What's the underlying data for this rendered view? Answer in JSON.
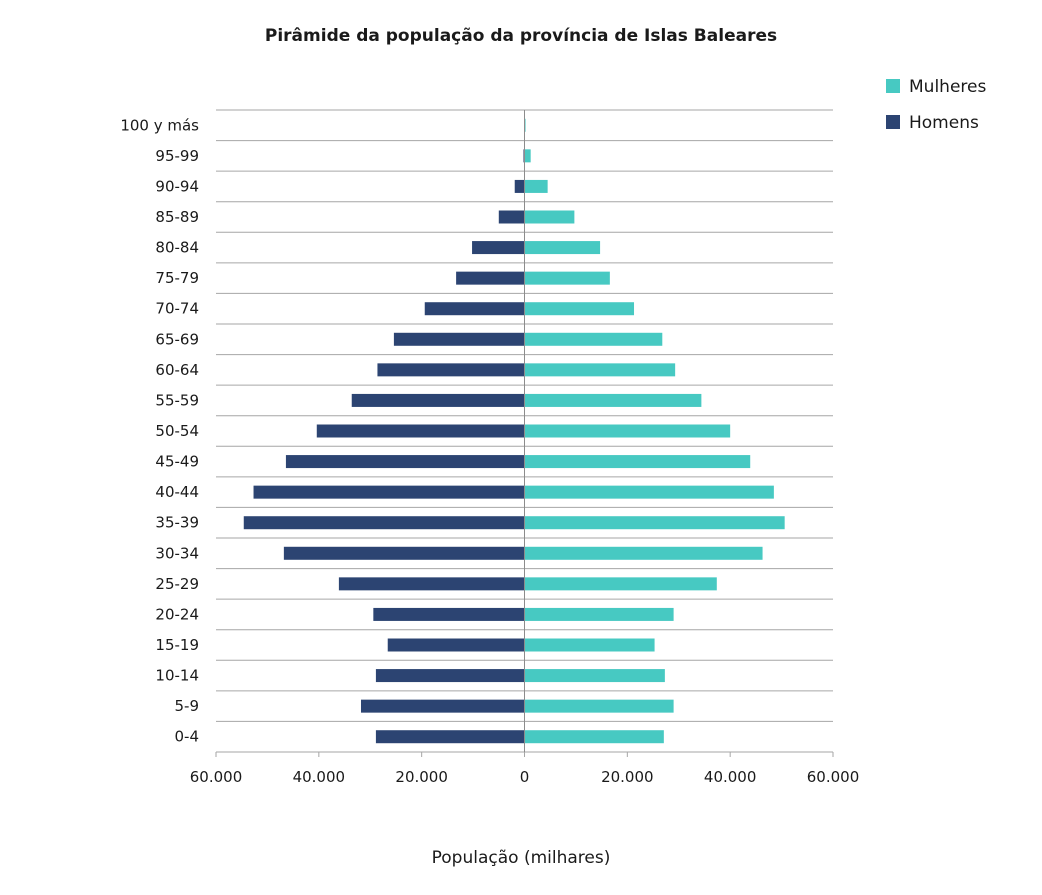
{
  "chart_data": {
    "type": "bar",
    "orientation": "horizontal",
    "title": "Pirâmide da população da província de Islas Baleares",
    "xlabel": "População (milhares)",
    "ylabel": "",
    "xlim": [
      -60000,
      60000
    ],
    "xticks": [
      -60000,
      -40000,
      -20000,
      0,
      20000,
      40000,
      60000
    ],
    "xtick_labels": [
      "60.000",
      "40.000",
      "20.000",
      "0",
      "20.000",
      "40.000",
      "60.000"
    ],
    "grid": "horizontal",
    "legend_position": "top-right",
    "categories": [
      "100 y más",
      "95-99",
      "90-94",
      "85-89",
      "80-84",
      "75-79",
      "70-74",
      "65-69",
      "60-64",
      "55-59",
      "50-54",
      "45-49",
      "40-44",
      "35-39",
      "30-34",
      "25-29",
      "20-24",
      "15-19",
      "10-14",
      "5-9",
      "0-4"
    ],
    "series": [
      {
        "name": "Mulheres",
        "color": "#47c9c2",
        "values": [
          200,
          1200,
          4500,
          9700,
          14700,
          16600,
          21300,
          26800,
          29300,
          34400,
          40000,
          43900,
          48500,
          50600,
          46300,
          37400,
          29000,
          25300,
          27300,
          29000,
          27100
        ]
      },
      {
        "name": "Homens",
        "color": "#2c4472",
        "values": [
          0,
          200,
          1900,
          5000,
          10200,
          13300,
          19400,
          25400,
          28600,
          33600,
          40400,
          46400,
          52700,
          54600,
          46800,
          36100,
          29400,
          26600,
          28900,
          31800,
          28900
        ]
      }
    ]
  }
}
